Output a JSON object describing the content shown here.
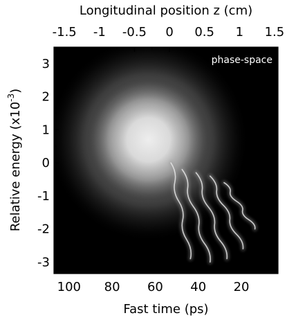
{
  "chart_data": {
    "type": "heatmap",
    "panel_label": "phase-space",
    "colormap": "grayscale (black = low density, white = high density)",
    "background_color": "#000000",
    "top_axis": {
      "label": "Longitudinal position z (cm)",
      "range": [
        -1.65,
        1.55
      ],
      "tick_values": [
        -1.5,
        -1,
        -0.5,
        0,
        0.5,
        1,
        1.5
      ],
      "tick_labels": [
        "-1.5",
        "-1",
        "-0.5",
        "0",
        "0.5",
        "1",
        "1.5"
      ]
    },
    "bottom_axis": {
      "label": "Fast time (ps)",
      "range": [
        107,
        3
      ],
      "tick_values": [
        100,
        80,
        60,
        40,
        20
      ],
      "tick_labels": [
        "100",
        "80",
        "60",
        "40",
        "20"
      ]
    },
    "left_axis": {
      "label": "Relative energy (x10",
      "label_superscript": "-3",
      "label_close": ")",
      "range": [
        -3.35,
        3.5
      ],
      "tick_values": [
        3,
        2,
        1,
        0,
        -1,
        -2,
        -3
      ],
      "tick_labels": [
        "3",
        "2",
        "1",
        "0",
        "-1",
        "-2",
        "-3"
      ]
    },
    "distribution": {
      "core": {
        "z_center": -0.3,
        "energy_center": 0.7,
        "z_sigma": 0.55,
        "energy_sigma": 1.4,
        "peak_intensity": 1.0
      },
      "filaments": [
        {
          "z_top": 0.02,
          "energy_top": 0.0,
          "z_bottom": 0.3,
          "energy_bottom": -2.9
        },
        {
          "z_top": 0.18,
          "energy_top": -0.2,
          "z_bottom": 0.58,
          "energy_bottom": -3.0
        },
        {
          "z_top": 0.38,
          "energy_top": -0.3,
          "z_bottom": 0.82,
          "energy_bottom": -2.9
        },
        {
          "z_top": 0.58,
          "energy_top": -0.4,
          "z_bottom": 1.05,
          "energy_bottom": -2.6
        },
        {
          "z_top": 0.78,
          "energy_top": -0.6,
          "z_bottom": 1.22,
          "energy_bottom": -2.0
        }
      ]
    }
  }
}
